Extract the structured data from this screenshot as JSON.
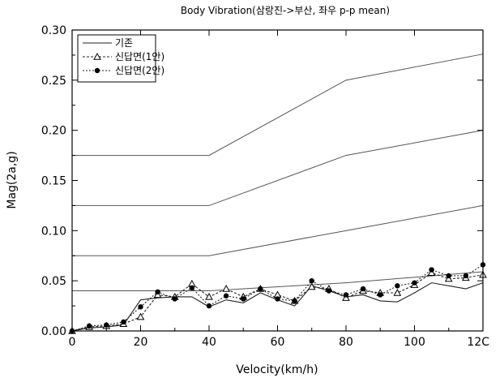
{
  "chart_data": {
    "type": "line",
    "title": "Body Vibration(삼랑진->부산, 좌우 p-p mean)",
    "xlabel": "Velocity(km/h)",
    "ylabel": "Mag(2a,g)",
    "xlim": [
      0,
      120
    ],
    "ylim": [
      0,
      0.3
    ],
    "x_ticks": [
      "0",
      "20",
      "40",
      "60",
      "80",
      "100",
      "12C"
    ],
    "x_tick_values": [
      0,
      20,
      40,
      60,
      80,
      100,
      120
    ],
    "y_ticks": [
      "0.00",
      "0.05",
      "0.10",
      "0.15",
      "0.20",
      "0.25",
      "0.30"
    ],
    "y_tick_values": [
      0,
      0.05,
      0.1,
      0.15,
      0.2,
      0.25,
      0.3
    ],
    "grid": false,
    "legend_position": "top-left",
    "series": [
      {
        "name": "기존",
        "marker": "none",
        "x": [
          0,
          5,
          10,
          15,
          20,
          25,
          30,
          35,
          40,
          45,
          50,
          55,
          60,
          65,
          70,
          75,
          80,
          85,
          90,
          95,
          100,
          105,
          110,
          115,
          120
        ],
        "y": [
          0,
          0.003,
          0.004,
          0.006,
          0.031,
          0.033,
          0.034,
          0.034,
          0.024,
          0.031,
          0.028,
          0.038,
          0.031,
          0.025,
          0.045,
          0.04,
          0.034,
          0.036,
          0.03,
          0.029,
          0.038,
          0.048,
          0.045,
          0.042,
          0.048
        ]
      },
      {
        "name": "신답면(1안)",
        "marker": "triangle",
        "x": [
          0,
          5,
          10,
          15,
          20,
          25,
          30,
          35,
          40,
          45,
          50,
          55,
          60,
          65,
          70,
          75,
          80,
          85,
          90,
          95,
          100,
          105,
          110,
          115,
          120
        ],
        "y": [
          0,
          0.004,
          0.005,
          0.007,
          0.014,
          0.036,
          0.034,
          0.047,
          0.034,
          0.042,
          0.034,
          0.042,
          0.036,
          0.03,
          0.044,
          0.042,
          0.033,
          0.04,
          0.038,
          0.038,
          0.046,
          0.058,
          0.052,
          0.053,
          0.056
        ]
      },
      {
        "name": "신답면(2안)",
        "marker": "circle",
        "x": [
          0,
          5,
          10,
          15,
          20,
          25,
          30,
          35,
          40,
          45,
          50,
          55,
          60,
          65,
          70,
          75,
          80,
          85,
          90,
          95,
          100,
          105,
          110,
          115,
          120
        ],
        "y": [
          0,
          0.005,
          0.006,
          0.009,
          0.024,
          0.039,
          0.032,
          0.043,
          0.025,
          0.035,
          0.032,
          0.042,
          0.032,
          0.03,
          0.05,
          0.04,
          0.036,
          0.042,
          0.036,
          0.045,
          0.048,
          0.061,
          0.055,
          0.055,
          0.066
        ]
      },
      {
        "name": "",
        "marker": "none",
        "role": "reference",
        "x": [
          0,
          40,
          80,
          120
        ],
        "y": [
          0.04,
          0.04,
          0.048,
          0.059
        ]
      },
      {
        "name": "",
        "marker": "none",
        "role": "reference",
        "x": [
          0,
          40,
          80,
          120
        ],
        "y": [
          0.075,
          0.075,
          0.1,
          0.125
        ]
      },
      {
        "name": "",
        "marker": "none",
        "role": "reference",
        "x": [
          0,
          40,
          80,
          120
        ],
        "y": [
          0.125,
          0.125,
          0.175,
          0.2
        ]
      },
      {
        "name": "",
        "marker": "none",
        "role": "reference",
        "x": [
          0,
          40,
          80,
          120
        ],
        "y": [
          0.175,
          0.175,
          0.25,
          0.276
        ]
      }
    ],
    "colors": {
      "axis": "#000000",
      "data_line": "#222222",
      "reference_line": "#555555"
    }
  }
}
